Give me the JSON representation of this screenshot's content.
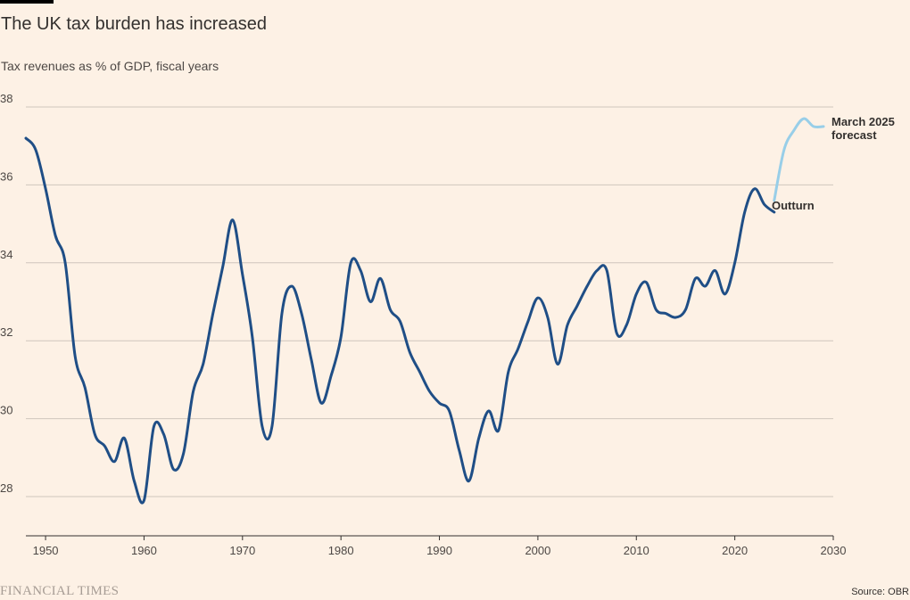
{
  "header": {
    "title": "The UK tax burden has increased",
    "subtitle": "Tax revenues as % of GDP, fiscal years"
  },
  "footer": {
    "logo": "FINANCIAL TIMES",
    "source": "Source: OBR"
  },
  "chart_data": {
    "type": "line",
    "xlim": [
      1948,
      2030
    ],
    "ylim": [
      27,
      38
    ],
    "x_ticks": [
      1950,
      1960,
      1970,
      1980,
      1990,
      2000,
      2010,
      2020,
      2030
    ],
    "y_ticks": [
      28,
      30,
      32,
      34,
      36,
      38
    ],
    "grid": "horizontal",
    "colors": {
      "outturn": "#1f4e86",
      "forecast": "#98cee8",
      "grid": "#cfc6bd",
      "axis": "#33302e"
    },
    "series": [
      {
        "name": "Outturn",
        "label": "Outturn",
        "values": [
          [
            1948,
            37.2
          ],
          [
            1949,
            36.9
          ],
          [
            1950,
            35.9
          ],
          [
            1951,
            34.7
          ],
          [
            1952,
            34.0
          ],
          [
            1953,
            31.6
          ],
          [
            1954,
            30.8
          ],
          [
            1955,
            29.6
          ],
          [
            1956,
            29.3
          ],
          [
            1957,
            28.9
          ],
          [
            1958,
            29.5
          ],
          [
            1959,
            28.4
          ],
          [
            1960,
            27.9
          ],
          [
            1961,
            29.8
          ],
          [
            1962,
            29.6
          ],
          [
            1963,
            28.7
          ],
          [
            1964,
            29.1
          ],
          [
            1965,
            30.7
          ],
          [
            1966,
            31.4
          ],
          [
            1967,
            32.7
          ],
          [
            1968,
            33.9
          ],
          [
            1969,
            35.1
          ],
          [
            1970,
            33.7
          ],
          [
            1971,
            32.1
          ],
          [
            1972,
            29.8
          ],
          [
            1973,
            29.8
          ],
          [
            1974,
            32.7
          ],
          [
            1975,
            33.4
          ],
          [
            1976,
            32.7
          ],
          [
            1977,
            31.5
          ],
          [
            1978,
            30.4
          ],
          [
            1979,
            31.1
          ],
          [
            1980,
            32.1
          ],
          [
            1981,
            34.0
          ],
          [
            1982,
            33.8
          ],
          [
            1983,
            33.0
          ],
          [
            1984,
            33.6
          ],
          [
            1985,
            32.8
          ],
          [
            1986,
            32.5
          ],
          [
            1987,
            31.7
          ],
          [
            1988,
            31.2
          ],
          [
            1989,
            30.7
          ],
          [
            1990,
            30.4
          ],
          [
            1991,
            30.2
          ],
          [
            1992,
            29.2
          ],
          [
            1993,
            28.4
          ],
          [
            1994,
            29.5
          ],
          [
            1995,
            30.2
          ],
          [
            1996,
            29.7
          ],
          [
            1997,
            31.2
          ],
          [
            1998,
            31.8
          ],
          [
            1999,
            32.5
          ],
          [
            2000,
            33.1
          ],
          [
            2001,
            32.6
          ],
          [
            2002,
            31.4
          ],
          [
            2003,
            32.4
          ],
          [
            2004,
            32.9
          ],
          [
            2005,
            33.4
          ],
          [
            2006,
            33.8
          ],
          [
            2007,
            33.8
          ],
          [
            2008,
            32.2
          ],
          [
            2009,
            32.4
          ],
          [
            2010,
            33.2
          ],
          [
            2011,
            33.5
          ],
          [
            2012,
            32.8
          ],
          [
            2013,
            32.7
          ],
          [
            2014,
            32.6
          ],
          [
            2015,
            32.8
          ],
          [
            2016,
            33.6
          ],
          [
            2017,
            33.4
          ],
          [
            2018,
            33.8
          ],
          [
            2019,
            33.2
          ],
          [
            2020,
            34.0
          ],
          [
            2021,
            35.3
          ],
          [
            2022,
            35.9
          ],
          [
            2023,
            35.5
          ],
          [
            2024,
            35.3
          ]
        ]
      },
      {
        "name": "March 2025 forecast",
        "label": [
          "March 2025",
          "forecast"
        ],
        "values": [
          [
            2024,
            35.6
          ],
          [
            2025,
            36.9
          ],
          [
            2026,
            37.4
          ],
          [
            2027,
            37.7
          ],
          [
            2028,
            37.5
          ],
          [
            2029,
            37.5
          ]
        ]
      }
    ]
  }
}
